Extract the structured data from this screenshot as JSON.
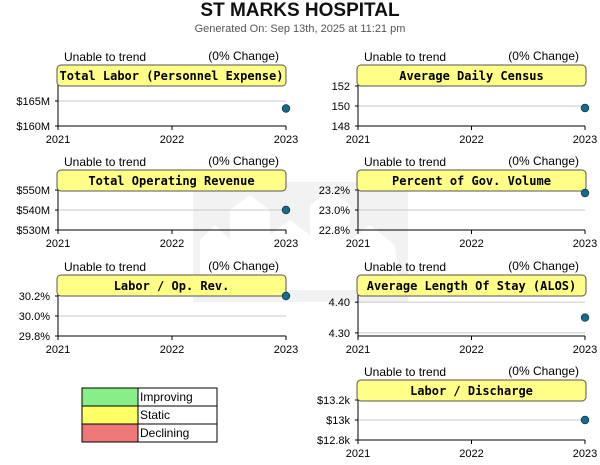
{
  "title": "ST MARKS HOSPITAL",
  "subtitle": "Generated On: Sep 13th, 2025 at 11:21 pm",
  "colors": {
    "header_fill": "#ffff88",
    "point": "#1a6a8a",
    "improving": "#88ee88",
    "static": "#ffff66",
    "declining": "#ee7777"
  },
  "legend": [
    {
      "label": "Improving",
      "color": "#88ee88"
    },
    {
      "label": "Static",
      "color": "#ffff66"
    },
    {
      "label": "Declining",
      "color": "#ee7777"
    }
  ],
  "chart_data": [
    {
      "type": "line",
      "title": "Total Labor (Personnel Expense)",
      "status": "Unable to trend",
      "change": "(0% Change)",
      "x": [
        "2021",
        "2022",
        "2023"
      ],
      "yticks": [
        "$165M",
        "$160M"
      ],
      "ytick_values": [
        165,
        160
      ],
      "ylim": [
        160,
        168
      ],
      "points": [
        {
          "x": "2023",
          "y": 163.5
        }
      ]
    },
    {
      "type": "line",
      "title": "Average Daily Census",
      "status": "Unable to trend",
      "change": "(0% Change)",
      "x": [
        "2021",
        "2022",
        "2023"
      ],
      "yticks": [
        "152",
        "150",
        "148"
      ],
      "ytick_values": [
        152,
        150,
        148
      ],
      "ylim": [
        148,
        152
      ],
      "points": [
        {
          "x": "2023",
          "y": 149.8
        }
      ]
    },
    {
      "type": "line",
      "title": "Total Operating Revenue",
      "status": "Unable to trend",
      "change": "(0% Change)",
      "x": [
        "2021",
        "2022",
        "2023"
      ],
      "yticks": [
        "$550M",
        "$540M",
        "$530M"
      ],
      "ytick_values": [
        550,
        540,
        530
      ],
      "ylim": [
        530,
        550
      ],
      "points": [
        {
          "x": "2023",
          "y": 540
        }
      ]
    },
    {
      "type": "line",
      "title": "Percent of Gov. Volume",
      "status": "Unable to trend",
      "change": "(0% Change)",
      "x": [
        "2021",
        "2022",
        "2023"
      ],
      "yticks": [
        "23.2%",
        "23.0%",
        "22.8%"
      ],
      "ytick_values": [
        23.2,
        23.0,
        22.8
      ],
      "ylim": [
        22.8,
        23.2
      ],
      "points": [
        {
          "x": "2023",
          "y": 23.17
        }
      ]
    },
    {
      "type": "line",
      "title": "Labor / Op. Rev.",
      "status": "Unable to trend",
      "change": "(0% Change)",
      "x": [
        "2021",
        "2022",
        "2023"
      ],
      "yticks": [
        "30.2%",
        "30.0%",
        "29.8%"
      ],
      "ytick_values": [
        30.2,
        30.0,
        29.8
      ],
      "ylim": [
        29.8,
        30.2
      ],
      "points": [
        {
          "x": "2023",
          "y": 30.2
        }
      ]
    },
    {
      "type": "line",
      "title": "Average Length Of Stay (ALOS)",
      "status": "Unable to trend",
      "change": "(0% Change)",
      "x": [
        "2021",
        "2022",
        "2023"
      ],
      "yticks": [
        "4.40",
        "4.30"
      ],
      "ytick_values": [
        4.4,
        4.3
      ],
      "ylim": [
        4.29,
        4.42
      ],
      "points": [
        {
          "x": "2023",
          "y": 4.35
        }
      ]
    },
    {
      "type": "line",
      "title": "Labor / Discharge",
      "status": "Unable to trend",
      "change": "(0% Change)",
      "x": [
        "2021",
        "2022",
        "2023"
      ],
      "yticks": [
        "$13.2k",
        "$13k",
        "$12.8k"
      ],
      "ytick_values": [
        13.2,
        13.0,
        12.8
      ],
      "ylim": [
        12.8,
        13.2
      ],
      "points": [
        {
          "x": "2023",
          "y": 13.0
        }
      ]
    }
  ]
}
